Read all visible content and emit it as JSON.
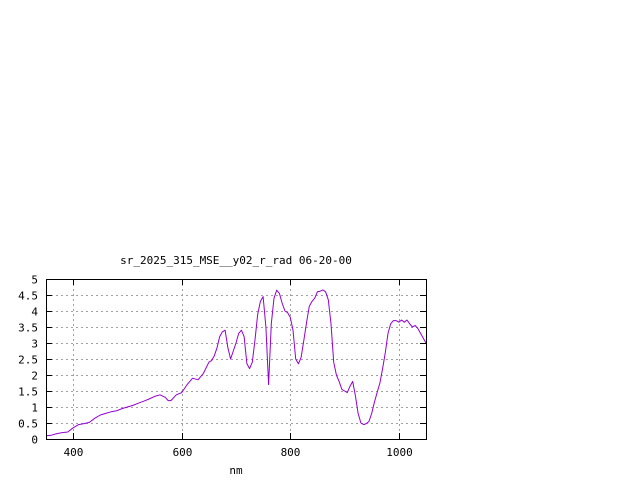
{
  "chart_data": {
    "type": "line",
    "title": "sr_2025_315_MSE__y02_r_rad 06-20-00",
    "xlabel": "nm",
    "ylabel": "",
    "xlim": [
      350,
      1050
    ],
    "ylim": [
      0,
      5
    ],
    "x_ticks": [
      400,
      600,
      800,
      1000
    ],
    "x_tick_labels": [
      "400",
      "600",
      "800",
      "1000"
    ],
    "y_ticks": [
      0,
      0.5,
      1,
      1.5,
      2,
      2.5,
      3,
      3.5,
      4,
      4.5,
      5
    ],
    "y_tick_labels": [
      "0",
      "0.5",
      "1",
      "1.5",
      "2",
      "2.5",
      "3",
      "3.5",
      "4",
      "4.5",
      "5"
    ],
    "grid": true,
    "legend": "none",
    "line_color": "#9400d3",
    "series": [
      {
        "x": [
          350,
          360,
          370,
          380,
          390,
          400,
          410,
          420,
          430,
          440,
          450,
          460,
          470,
          480,
          490,
          500,
          510,
          520,
          530,
          540,
          550,
          560,
          570,
          575,
          580,
          590,
          600,
          610,
          620,
          630,
          640,
          650,
          655,
          660,
          665,
          670,
          675,
          680,
          685,
          690,
          700,
          705,
          710,
          715,
          720,
          725,
          730,
          735,
          740,
          745,
          750,
          755,
          760,
          765,
          770,
          775,
          780,
          785,
          790,
          795,
          800,
          805,
          810,
          815,
          820,
          825,
          830,
          835,
          840,
          845,
          850,
          855,
          860,
          865,
          870,
          875,
          880,
          885,
          890,
          895,
          900,
          905,
          910,
          915,
          920,
          925,
          930,
          935,
          940,
          945,
          950,
          955,
          960,
          965,
          970,
          975,
          980,
          985,
          990,
          995,
          1000,
          1005,
          1010,
          1015,
          1020,
          1025,
          1030,
          1035,
          1040,
          1045,
          1050
        ],
        "y": [
          0.1,
          0.12,
          0.17,
          0.2,
          0.22,
          0.35,
          0.45,
          0.48,
          0.52,
          0.65,
          0.75,
          0.8,
          0.85,
          0.88,
          0.95,
          1.0,
          1.05,
          1.12,
          1.18,
          1.25,
          1.33,
          1.38,
          1.3,
          1.2,
          1.2,
          1.38,
          1.45,
          1.7,
          1.9,
          1.85,
          2.05,
          2.4,
          2.45,
          2.6,
          2.85,
          3.2,
          3.35,
          3.4,
          2.85,
          2.5,
          3.0,
          3.3,
          3.4,
          3.2,
          2.35,
          2.2,
          2.4,
          3.1,
          3.9,
          4.3,
          4.45,
          3.5,
          1.7,
          3.6,
          4.4,
          4.65,
          4.55,
          4.25,
          4.0,
          3.95,
          3.8,
          3.4,
          2.5,
          2.35,
          2.55,
          3.1,
          3.65,
          4.15,
          4.3,
          4.4,
          4.6,
          4.62,
          4.66,
          4.6,
          4.35,
          3.6,
          2.4,
          2.0,
          1.8,
          1.55,
          1.5,
          1.45,
          1.65,
          1.8,
          1.35,
          0.8,
          0.5,
          0.45,
          0.48,
          0.55,
          0.8,
          1.15,
          1.45,
          1.75,
          2.2,
          2.7,
          3.3,
          3.6,
          3.7,
          3.7,
          3.65,
          3.72,
          3.65,
          3.72,
          3.6,
          3.5,
          3.55,
          3.45,
          3.3,
          3.15,
          3.0
        ]
      }
    ]
  }
}
